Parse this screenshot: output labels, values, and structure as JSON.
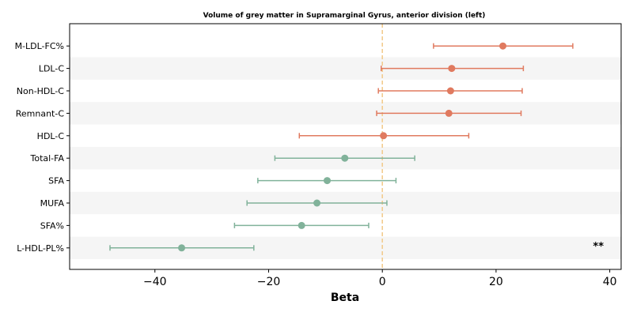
{
  "chart_data": {
    "type": "forest",
    "title": "Volume of grey matter in Supramarginal Gyrus, anterior division (left)",
    "xlabel": "Beta",
    "xlim": [
      -55,
      42
    ],
    "xticks": [
      -40,
      -20,
      0,
      20,
      40
    ],
    "reference_line": 0,
    "colors": {
      "positive": "#e07a5f",
      "negative": "#81b29a",
      "reference": "#f2cc8f",
      "band": "#f5f5f5"
    },
    "rows": [
      {
        "label": "M-LDL-FC%",
        "beta": 21.2,
        "lower": 9.0,
        "upper": 33.5,
        "group": "positive",
        "sig": ""
      },
      {
        "label": "LDL-C",
        "beta": 12.2,
        "lower": -0.2,
        "upper": 24.8,
        "group": "positive",
        "sig": ""
      },
      {
        "label": "Non-HDL-C",
        "beta": 12.0,
        "lower": -0.7,
        "upper": 24.6,
        "group": "positive",
        "sig": ""
      },
      {
        "label": "Remnant-C",
        "beta": 11.7,
        "lower": -1.0,
        "upper": 24.4,
        "group": "positive",
        "sig": ""
      },
      {
        "label": "HDL-C",
        "beta": 0.2,
        "lower": -14.6,
        "upper": 15.2,
        "group": "positive",
        "sig": ""
      },
      {
        "label": "Total-FA",
        "beta": -6.6,
        "lower": -18.9,
        "upper": 5.7,
        "group": "negative",
        "sig": ""
      },
      {
        "label": "SFA",
        "beta": -9.7,
        "lower": -21.9,
        "upper": 2.4,
        "group": "negative",
        "sig": ""
      },
      {
        "label": "MUFA",
        "beta": -11.5,
        "lower": -23.8,
        "upper": 0.8,
        "group": "negative",
        "sig": ""
      },
      {
        "label": "SFA%",
        "beta": -14.2,
        "lower": -26.0,
        "upper": -2.4,
        "group": "negative",
        "sig": ""
      },
      {
        "label": "L-HDL-PL%",
        "beta": -35.3,
        "lower": -47.9,
        "upper": -22.6,
        "group": "negative",
        "sig": "**"
      }
    ]
  }
}
